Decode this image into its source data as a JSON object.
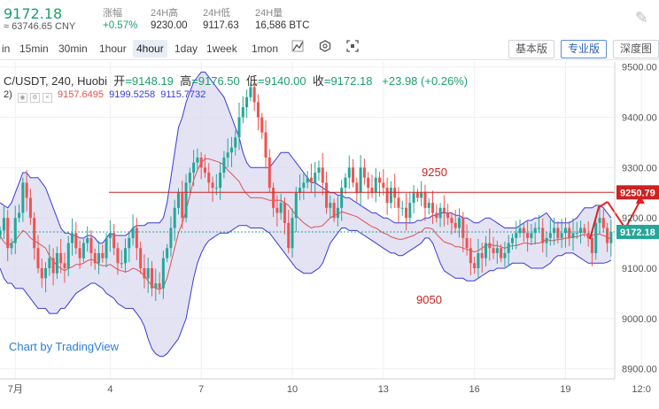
{
  "header": {
    "last_price": "9172.18",
    "cny_value": "≈ 63746.65 CNY",
    "change_label": "涨幅",
    "change_value": "+0.57%",
    "high_label": "24H高",
    "high_value": "9230.00",
    "low_label": "24H低",
    "low_value": "9117.63",
    "volume_label": "24H量",
    "volume_value": "16,586 BTC"
  },
  "toolbar": {
    "timeframes": [
      "in",
      "15min",
      "30min",
      "1hour",
      "4hour",
      "1day",
      "1week",
      "1mon"
    ],
    "active_timeframe": "4hour",
    "icons": [
      "candle-style-icon",
      "indicator-icon",
      "fullscreen-icon"
    ],
    "views": [
      "基本版",
      "专业版",
      "深度图"
    ],
    "active_view": "专业版"
  },
  "legend": {
    "symbol": "C/USDT, 240, Huobi",
    "open_label": "开",
    "open": "9148.19",
    "high_label": "高",
    "high": "9176.50",
    "low_label": "低",
    "low": "9140.00",
    "close_label": "收",
    "close": "9172.18",
    "change": "+23.98 (+0.26%)",
    "indicator_prefix": "2)",
    "bb_mid": "9157.6495",
    "bb_upper": "9199.5258",
    "bb_lower": "9115.7732"
  },
  "watermark": "Chart by TradingView",
  "colors": {
    "up": "#26a69a",
    "down": "#ef5350",
    "band_fill": "#d9daf0",
    "band_line": "#3a3ad8",
    "mid_line": "#e05050",
    "accent_green": "#1aa16b"
  },
  "chart_data": {
    "type": "candlestick",
    "ylim": [
      8880,
      9510
    ],
    "y_ticks": [
      8900,
      9000,
      9100,
      9200,
      9300,
      9400,
      9500
    ],
    "y_tick_labels": [
      "8900.00",
      "9000.00",
      "9100.00",
      "9200.00",
      "9300.00",
      "9400.00",
      "9500.00"
    ],
    "x_tick_labels": [
      "7月",
      "4",
      "7",
      "10",
      "13",
      "16",
      "19",
      "12:0"
    ],
    "x_tick_index": [
      4,
      29,
      53,
      77,
      101,
      125,
      149,
      169
    ],
    "visible_candles": 162,
    "close_series": [
      9175,
      9200,
      9140,
      9150,
      9200,
      9210,
      9270,
      9240,
      9200,
      9140,
      9100,
      9080,
      9100,
      9120,
      9090,
      9130,
      9110,
      9100,
      9150,
      9170,
      9140,
      9120,
      9150,
      9160,
      9130,
      9110,
      9130,
      9120,
      9160,
      9170,
      9140,
      9110,
      9110,
      9140,
      9160,
      9180,
      9140,
      9100,
      9080,
      9100,
      9060,
      9070,
      9060,
      9120,
      9140,
      9180,
      9220,
      9250,
      9200,
      9270,
      9290,
      9310,
      9320,
      9300,
      9290,
      9270,
      9260,
      9260,
      9290,
      9320,
      9330,
      9340,
      9360,
      9400,
      9420,
      9440,
      9460,
      9430,
      9400,
      9370,
      9320,
      9260,
      9220,
      9210,
      9230,
      9190,
      9140,
      9200,
      9250,
      9260,
      9270,
      9280,
      9270,
      9290,
      9300,
      9270,
      9220,
      9230,
      9200,
      9220,
      9260,
      9280,
      9300,
      9270,
      9250,
      9300,
      9280,
      9260,
      9250,
      9280,
      9270,
      9260,
      9230,
      9260,
      9240,
      9220,
      9220,
      9200,
      9230,
      9250,
      9240,
      9250,
      9220,
      9230,
      9210,
      9200,
      9220,
      9210,
      9200,
      9190,
      9180,
      9200,
      9160,
      9140,
      9110,
      9100,
      9130,
      9120,
      9150,
      9140,
      9130,
      9140,
      9120,
      9130,
      9150,
      9160,
      9170,
      9180,
      9170,
      9160,
      9170,
      9180,
      9180,
      9150,
      9160,
      9170,
      9180,
      9160,
      9170,
      9180,
      9160,
      9170,
      9170,
      9180,
      9170,
      9160,
      9130,
      9190,
      9200,
      9180,
      9150,
      9172
    ],
    "bb_upper_series": [
      9230,
      9225,
      9220,
      9230,
      9250,
      9270,
      9290,
      9290,
      9280,
      9280,
      9280,
      9270,
      9260,
      9240,
      9220,
      9200,
      9180,
      9170,
      9170,
      9165,
      9165,
      9160,
      9160,
      9165,
      9165,
      9160,
      9150,
      9150,
      9160,
      9170,
      9165,
      9165,
      9165,
      9165,
      9170,
      9180,
      9185,
      9185,
      9185,
      9190,
      9190,
      9190,
      9190,
      9200,
      9230,
      9280,
      9330,
      9380,
      9400,
      9430,
      9450,
      9470,
      9480,
      9490,
      9490,
      9480,
      9470,
      9460,
      9450,
      9440,
      9420,
      9400,
      9380,
      9360,
      9330,
      9310,
      9300,
      9300,
      9300,
      9300,
      9300,
      9300,
      9310,
      9320,
      9330,
      9330,
      9330,
      9320,
      9310,
      9300,
      9290,
      9280,
      9270,
      9270,
      9265,
      9260,
      9255,
      9250,
      9250,
      9245,
      9245,
      9240,
      9240,
      9235,
      9230,
      9225,
      9220,
      9215,
      9210,
      9210,
      9205,
      9200,
      9200,
      9195,
      9190,
      9190,
      9190,
      9190,
      9190,
      9190,
      9195,
      9195,
      9200,
      9200,
      9205,
      9205,
      9210,
      9210,
      9210,
      9210,
      9205,
      9205,
      9200,
      9200,
      9195,
      9190,
      9190,
      9195,
      9200,
      9200,
      9195,
      9190,
      9185,
      9180,
      9180,
      9180,
      9180,
      9185,
      9190,
      9195,
      9195,
      9200,
      9200,
      9205,
      9210,
      9200,
      9190,
      9190,
      9190,
      9190,
      9190,
      9195,
      9200,
      9210,
      9220,
      9220,
      9220,
      9225,
      9225,
      9220,
      9210,
      9200
    ],
    "bb_lower_series": [
      9100,
      9080,
      9070,
      9070,
      9060,
      9060,
      9060,
      9050,
      9040,
      9030,
      9020,
      9020,
      9020,
      9010,
      9010,
      9010,
      9020,
      9020,
      9030,
      9040,
      9050,
      9055,
      9060,
      9065,
      9070,
      9070,
      9065,
      9060,
      9050,
      9045,
      9040,
      9030,
      9025,
      9020,
      9020,
      9020,
      9010,
      9000,
      8985,
      8960,
      8940,
      8930,
      8925,
      8925,
      8930,
      8940,
      8950,
      8960,
      8980,
      9000,
      9040,
      9080,
      9110,
      9130,
      9145,
      9155,
      9160,
      9165,
      9170,
      9170,
      9170,
      9175,
      9180,
      9185,
      9185,
      9185,
      9180,
      9180,
      9180,
      9180,
      9175,
      9170,
      9160,
      9150,
      9140,
      9130,
      9120,
      9110,
      9100,
      9095,
      9090,
      9090,
      9090,
      9095,
      9100,
      9110,
      9130,
      9150,
      9160,
      9170,
      9180,
      9180,
      9175,
      9175,
      9175,
      9170,
      9165,
      9160,
      9155,
      9150,
      9145,
      9140,
      9135,
      9130,
      9130,
      9125,
      9125,
      9130,
      9135,
      9140,
      9145,
      9150,
      9160,
      9160,
      9150,
      9130,
      9110,
      9095,
      9090,
      9085,
      9080,
      9080,
      9080,
      9075,
      9075,
      9075,
      9080,
      9085,
      9090,
      9095,
      9095,
      9100,
      9100,
      9100,
      9105,
      9110,
      9110,
      9110,
      9110,
      9105,
      9100,
      9100,
      9100,
      9100,
      9105,
      9110,
      9120,
      9125,
      9125,
      9130,
      9130,
      9130,
      9125,
      9120,
      9115,
      9110,
      9110,
      9110,
      9110,
      9110,
      9112,
      9116
    ],
    "mid_series_note": "",
    "annotations": [
      {
        "text": "9250",
        "kind": "level"
      },
      {
        "text": "9050",
        "kind": "level"
      }
    ],
    "horizontal_line": 9250.79,
    "horizontal_line_label": "9250.79",
    "current_price_label": "9172.18"
  }
}
